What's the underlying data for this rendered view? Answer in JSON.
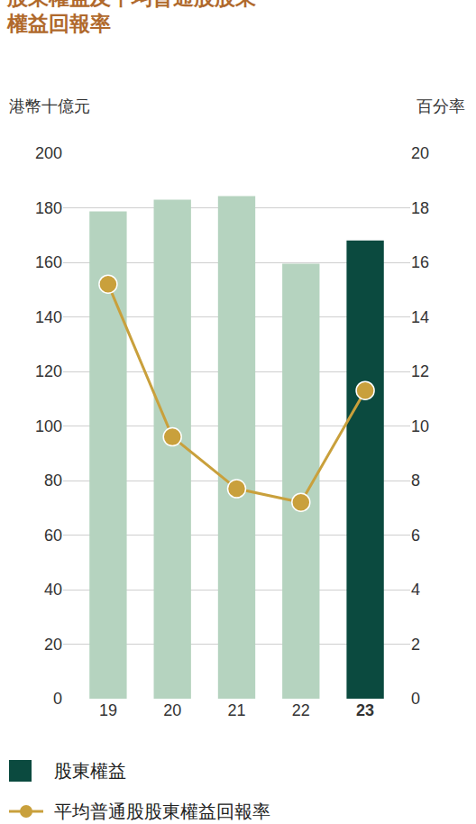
{
  "chart_data": {
    "type": "bar",
    "title": "股東權益及平均普通股股東\n權益回報率",
    "y_label": "港幣十億元",
    "y2_label": "百分率",
    "categories": [
      "19",
      "20",
      "21",
      "22",
      "23"
    ],
    "series": [
      {
        "name": "股東權益",
        "type": "bar",
        "color": "#0b4a3f",
        "colors": [
          "#b5d3bf",
          "#b5d3bf",
          "#b5d3bf",
          "#b5d3bf",
          "#0b4a3f"
        ],
        "values": [
          178.7,
          183.0,
          184.3,
          159.5,
          168.0
        ]
      },
      {
        "name": "平均普通股股東權益回報率",
        "type": "line",
        "axis": "y2",
        "color": "#c9a03c",
        "marker": "circle",
        "values": [
          15.2,
          9.6,
          7.7,
          7.2,
          11.3
        ]
      }
    ],
    "ylim": [
      0,
      200
    ],
    "yticks": [
      0,
      20,
      40,
      60,
      80,
      100,
      120,
      140,
      160,
      180,
      200
    ],
    "y2lim": [
      0,
      20
    ],
    "y2ticks": [
      0,
      2,
      4,
      6,
      8,
      10,
      12,
      14,
      16,
      18,
      20
    ],
    "grid": true,
    "legend": "bottom left"
  }
}
